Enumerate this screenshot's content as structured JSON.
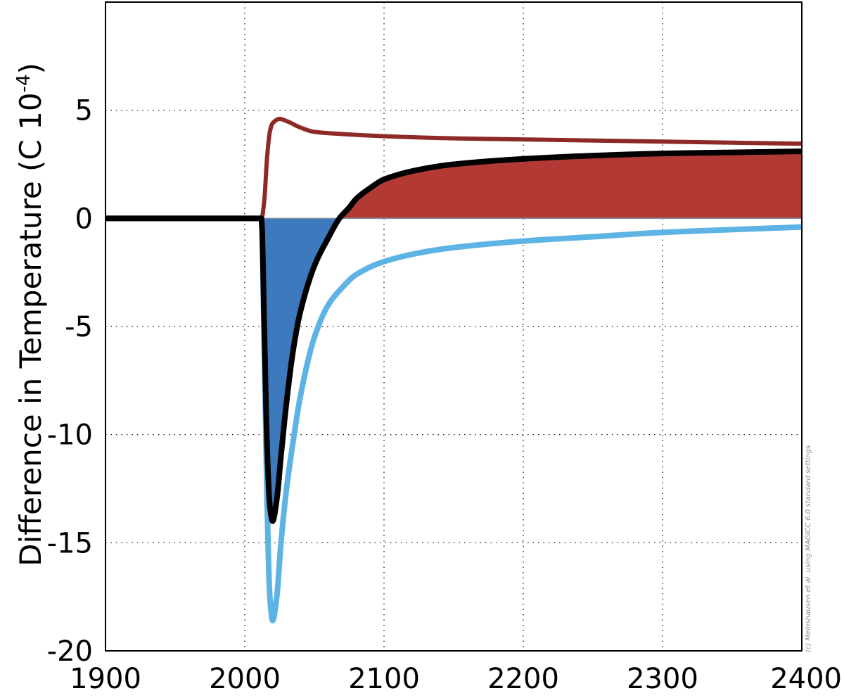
{
  "chart_data": {
    "type": "line",
    "title": "",
    "xlabel": "",
    "ylabel": "Difference in Temperature (C 10",
    "ylabel_superscript": "-4",
    "ylabel_suffix": ")",
    "xlim": [
      1900,
      2400
    ],
    "ylim": [
      -20,
      10
    ],
    "x_ticks": [
      "1900",
      "2000",
      "2100",
      "2200",
      "2300",
      "2400"
    ],
    "y_ticks": [
      "-20",
      "-15",
      "-10",
      "-5",
      "0",
      "5"
    ],
    "grid": true,
    "legend": "none",
    "annotation": "(c) Meinshausen et al. using MAGICC 6.0 standard settings",
    "fills": [
      {
        "name": "negative-area",
        "color": "#3d7abd",
        "between": [
          "net-line",
          0
        ],
        "where": "below"
      },
      {
        "name": "positive-area",
        "color": "#b33a34",
        "between": [
          "net-line",
          0
        ],
        "where": "above"
      }
    ],
    "series": [
      {
        "color": "#8e2a26",
        "points": [
          [
            1900,
            0
          ],
          [
            2012,
            0
          ],
          [
            2014,
            0.8
          ],
          [
            2016,
            2.8
          ],
          [
            2018,
            4.0
          ],
          [
            2020,
            4.4
          ],
          [
            2025,
            4.6
          ],
          [
            2030,
            4.5
          ],
          [
            2040,
            4.2
          ],
          [
            2050,
            4.0
          ],
          [
            2070,
            3.9
          ],
          [
            2100,
            3.8
          ],
          [
            2150,
            3.7
          ],
          [
            2200,
            3.65
          ],
          [
            2300,
            3.55
          ],
          [
            2400,
            3.45
          ]
        ]
      },
      {
        "color": "#5db3e4",
        "points": [
          [
            1900,
            0
          ],
          [
            2012,
            0
          ],
          [
            2014,
            -6
          ],
          [
            2016,
            -13
          ],
          [
            2018,
            -17.5
          ],
          [
            2020,
            -18.6
          ],
          [
            2023,
            -17.5
          ],
          [
            2026,
            -15
          ],
          [
            2030,
            -12.5
          ],
          [
            2035,
            -10.2
          ],
          [
            2040,
            -8.2
          ],
          [
            2050,
            -5.5
          ],
          [
            2060,
            -4.0
          ],
          [
            2070,
            -3.2
          ],
          [
            2080,
            -2.6
          ],
          [
            2100,
            -2.0
          ],
          [
            2125,
            -1.6
          ],
          [
            2150,
            -1.35
          ],
          [
            2200,
            -1.05
          ],
          [
            2250,
            -0.85
          ],
          [
            2300,
            -0.65
          ],
          [
            2350,
            -0.52
          ],
          [
            2400,
            -0.4
          ]
        ]
      },
      {
        "color": "#000000",
        "points": [
          [
            1900,
            0
          ],
          [
            2012,
            0
          ],
          [
            2014,
            -5
          ],
          [
            2016,
            -10.5
          ],
          [
            2018,
            -13.3
          ],
          [
            2020,
            -14.0
          ],
          [
            2023,
            -13.0
          ],
          [
            2026,
            -11.0
          ],
          [
            2030,
            -8.5
          ],
          [
            2035,
            -6.0
          ],
          [
            2040,
            -4.3
          ],
          [
            2050,
            -2.2
          ],
          [
            2060,
            -0.9
          ],
          [
            2068,
            0
          ],
          [
            2075,
            0.5
          ],
          [
            2080,
            0.9
          ],
          [
            2090,
            1.4
          ],
          [
            2100,
            1.8
          ],
          [
            2125,
            2.25
          ],
          [
            2150,
            2.5
          ],
          [
            2200,
            2.75
          ],
          [
            2250,
            2.9
          ],
          [
            2300,
            3.0
          ],
          [
            2350,
            3.05
          ],
          [
            2400,
            3.1
          ]
        ]
      }
    ]
  }
}
